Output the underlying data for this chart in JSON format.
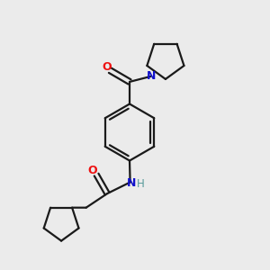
{
  "bg_color": "#ebebeb",
  "bond_color": "#1a1a1a",
  "oxygen_color": "#ee1111",
  "nitrogen_color": "#1111cc",
  "nh_h_color": "#559999",
  "bond_lw": 1.6,
  "figsize": [
    3.0,
    3.0
  ],
  "dpi": 100,
  "xlim": [
    0,
    10
  ],
  "ylim": [
    0,
    10
  ]
}
